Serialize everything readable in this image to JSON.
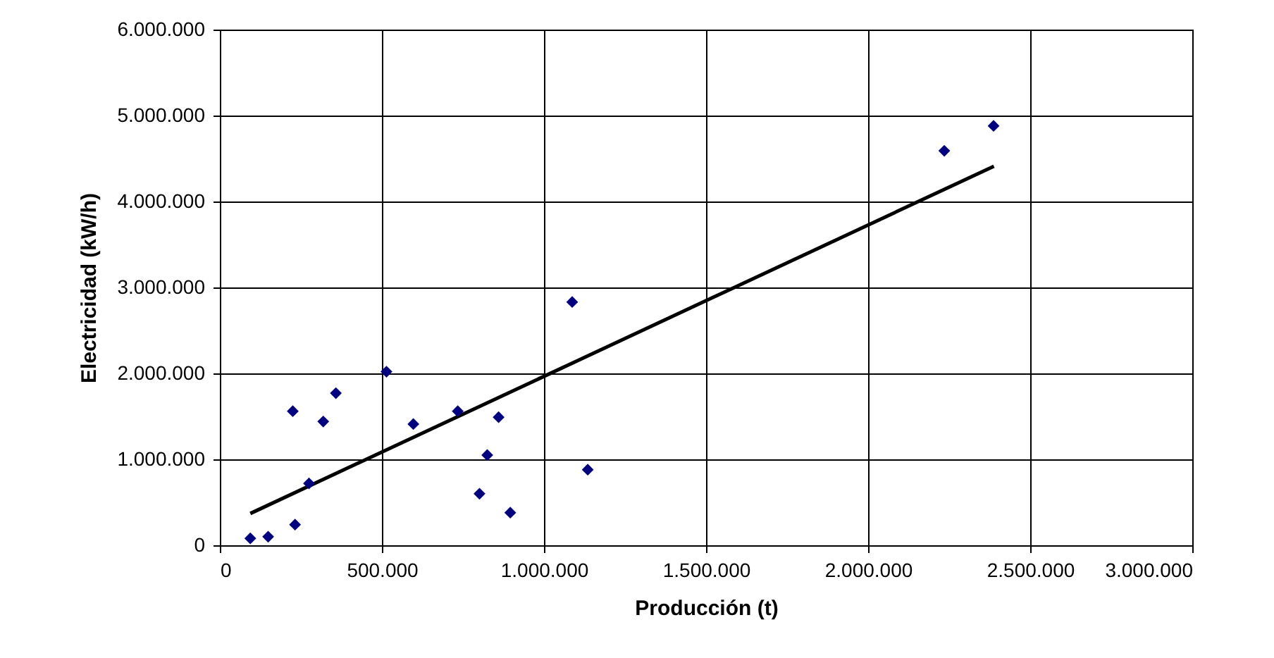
{
  "chart_data": {
    "type": "scatter",
    "xlabel": "Producción (t)",
    "ylabel": "Electricidad (kW/h)",
    "xlim": [
      0,
      3000000
    ],
    "ylim": [
      0,
      6000000
    ],
    "xticks": [
      0,
      {
        "value": 500000,
        "label": "500.000"
      },
      {
        "value": 1000000,
        "label": "1.000.000"
      },
      {
        "value": 1500000,
        "label": "1.500.000"
      },
      {
        "value": 2000000,
        "label": "2.000.000"
      },
      {
        "value": 2500000,
        "label": "2.500.000"
      },
      {
        "value": 3000000,
        "label": "3.000.000"
      }
    ],
    "yticks": [
      0,
      {
        "value": 1000000,
        "label": "1.000.000"
      },
      {
        "value": 2000000,
        "label": "2.000.000"
      },
      {
        "value": 3000000,
        "label": "3.000.000"
      },
      {
        "value": 4000000,
        "label": "4.000.000"
      },
      {
        "value": 5000000,
        "label": "5.000.000"
      },
      {
        "value": 6000000,
        "label": "6.000.000"
      }
    ],
    "grid": true,
    "series": [
      {
        "marker": "diamond",
        "color": "#000080",
        "x": [
          94000,
          149000,
          232000,
          275000,
          225000,
          319000,
          358000,
          514000,
          597000,
          734000,
          860000,
          825000,
          801000,
          896000,
          1135000,
          1087000,
          2235000,
          2387000
        ],
        "values": [
          80000,
          100000,
          240000,
          720000,
          1560000,
          1440000,
          1770000,
          2020000,
          1410000,
          1560000,
          1490000,
          1050000,
          600000,
          380000,
          880000,
          2830000,
          4590000,
          4880000
        ]
      },
      {
        "type": "line",
        "color": "#000000",
        "x": [
          94000,
          2388000
        ],
        "values": [
          370000,
          4410000
        ]
      }
    ]
  }
}
